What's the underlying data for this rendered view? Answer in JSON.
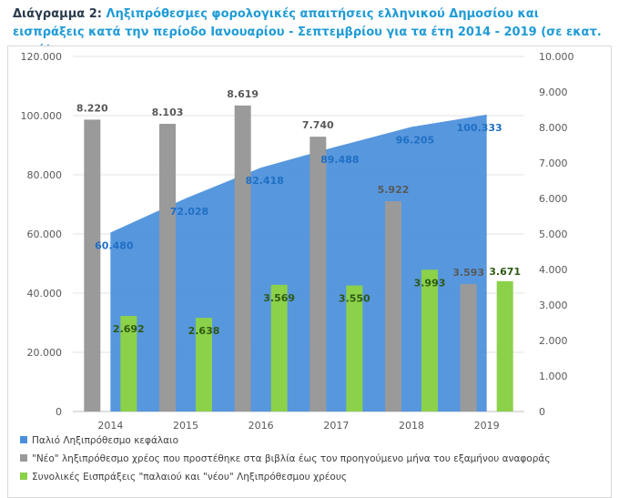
{
  "title": {
    "lead": "Διάγραμμα 2:",
    "rest": "Ληξιπρόθεσμες φορολογικές απαιτήσεις ελληνικού Δημοσίου και εισπράξεις κατά την περίοδο Ιανουαρίου - Σεπτεμβρίου για τα έτη 2014 - 2019 (σε εκατ. ευρώ)"
  },
  "colors": {
    "area": "#4a8fdc",
    "gray_bar": "#9a9a9a",
    "green_bar": "#8cd14a",
    "area_label": "#1f6fc4",
    "gray_label": "#595959",
    "green_label": "#2e5a12"
  },
  "chart_data": {
    "type": "bar",
    "categories": [
      "2014",
      "2015",
      "2016",
      "2017",
      "2018",
      "2019"
    ],
    "y_left": {
      "ylim": [
        0,
        120000
      ],
      "ticks": [
        "0",
        "20.000",
        "40.000",
        "60.000",
        "80.000",
        "100.000",
        "120.000"
      ]
    },
    "y_right": {
      "ylim": [
        0,
        10000
      ],
      "ticks": [
        "0",
        "1.000",
        "2.000",
        "3.000",
        "4.000",
        "5.000",
        "6.000",
        "7.000",
        "8.000",
        "9.000",
        "10.000"
      ]
    },
    "grid": true,
    "legend_position": "bottom",
    "series": [
      {
        "name": "Παλιό Ληξιπρόθεσμο κεφάλαιο",
        "type": "area",
        "axis": "left",
        "values": [
          60480,
          72028,
          82418,
          89488,
          96205,
          100333
        ],
        "labels": [
          "60.480",
          "72.028",
          "82.418",
          "89.488",
          "96.205",
          "100.333"
        ]
      },
      {
        "name": "\"Νέο\" ληξιπρόθεσμο χρέος που προστέθηκε στα βιβλία  έως τον προηγούμενο μήνα του εξαμήνου αναφοράς",
        "type": "bar",
        "axis": "right",
        "values": [
          8220,
          8103,
          8619,
          7740,
          5922,
          3593
        ],
        "labels": [
          "8.220",
          "8.103",
          "8.619",
          "7.740",
          "5.922",
          "3.593"
        ]
      },
      {
        "name": "Συνολικές Εισπράξεις \"παλαιού και \"νέου\" Ληξιπρόθεσμου χρέους",
        "type": "bar",
        "axis": "right",
        "values": [
          2692,
          2638,
          3569,
          3550,
          3993,
          3671
        ],
        "labels": [
          "2.692",
          "2.638",
          "3.569",
          "3.550",
          "3.993",
          "3.671"
        ]
      }
    ]
  }
}
